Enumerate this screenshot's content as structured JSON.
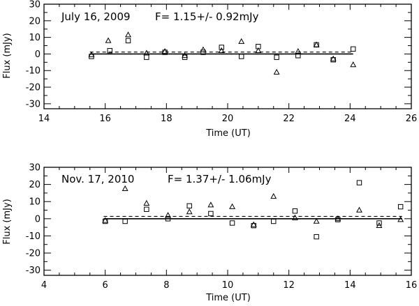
{
  "chart_data": [
    {
      "type": "scatter",
      "title": "",
      "annotation_date": "July 16, 2009",
      "annotation_flux": "F=  1.15+/-  0.92mJy",
      "xlabel": "Time (UT)",
      "ylabel": "Flux (mJy)",
      "xlim": [
        14,
        26
      ],
      "ylim": [
        -33,
        30
      ],
      "xticks": [
        14,
        16,
        18,
        20,
        22,
        24,
        26
      ],
      "yticks": [
        -30,
        -20,
        -10,
        0,
        10,
        20,
        30
      ],
      "mean_line": {
        "value": 1.15,
        "x_range": [
          15.5,
          24.1
        ]
      },
      "zero_line": {
        "x_range": [
          15.5,
          24.1
        ]
      },
      "series": [
        {
          "marker": "triangle",
          "x": [
            15.55,
            16.1,
            16.75,
            17.35,
            17.95,
            18.6,
            19.2,
            19.8,
            20.45,
            21.0,
            21.6,
            22.3,
            22.9,
            23.45,
            24.1
          ],
          "y": [
            -0.5,
            8.0,
            11.5,
            0.5,
            1.5,
            -1.0,
            2.5,
            2.0,
            7.5,
            2.0,
            -11.0,
            1.5,
            5.5,
            -3.0,
            -6.5
          ]
        },
        {
          "marker": "square",
          "x": [
            15.55,
            16.15,
            16.75,
            17.35,
            17.95,
            18.6,
            19.2,
            19.8,
            20.45,
            21.0,
            21.6,
            22.3,
            22.9,
            23.45,
            24.1
          ],
          "y": [
            -1.5,
            2.0,
            8.0,
            -2.0,
            1.0,
            -2.0,
            1.0,
            4.0,
            -1.5,
            4.5,
            -2.0,
            -1.0,
            5.5,
            -3.5,
            3.0
          ]
        }
      ]
    },
    {
      "type": "scatter",
      "title": "",
      "annotation_date": "Nov. 17, 2010",
      "annotation_flux": "F=  1.37+/-  1.06mJy",
      "xlabel": "Time (UT)",
      "ylabel": "Flux (mJy)",
      "xlim": [
        4,
        16
      ],
      "ylim": [
        -33,
        30
      ],
      "xticks": [
        4,
        6,
        8,
        10,
        12,
        14,
        16
      ],
      "yticks": [
        -30,
        -20,
        -10,
        0,
        10,
        20,
        30
      ],
      "mean_line": {
        "value": 1.37,
        "x_range": [
          5.95,
          15.7
        ]
      },
      "zero_line": {
        "x_range": [
          5.95,
          15.7
        ]
      },
      "series": [
        {
          "marker": "triangle",
          "x": [
            6.0,
            6.65,
            7.35,
            8.05,
            8.75,
            9.45,
            10.15,
            10.85,
            11.5,
            12.2,
            12.9,
            13.6,
            14.3,
            14.95,
            15.65
          ],
          "y": [
            -1.0,
            17.5,
            9.0,
            2.0,
            4.0,
            8.0,
            7.0,
            -3.5,
            13.0,
            0.5,
            -1.5,
            0.0,
            5.0,
            -4.0,
            -0.5
          ]
        },
        {
          "marker": "square",
          "x": [
            6.0,
            6.65,
            7.35,
            8.05,
            8.75,
            9.45,
            10.15,
            10.85,
            11.5,
            12.2,
            12.9,
            13.6,
            14.3,
            14.95,
            15.65
          ],
          "y": [
            -1.5,
            -1.5,
            5.5,
            0.0,
            7.5,
            3.0,
            -2.5,
            -4.0,
            -1.5,
            4.5,
            -10.5,
            -0.5,
            21.0,
            -2.5,
            7.0
          ]
        }
      ]
    }
  ]
}
